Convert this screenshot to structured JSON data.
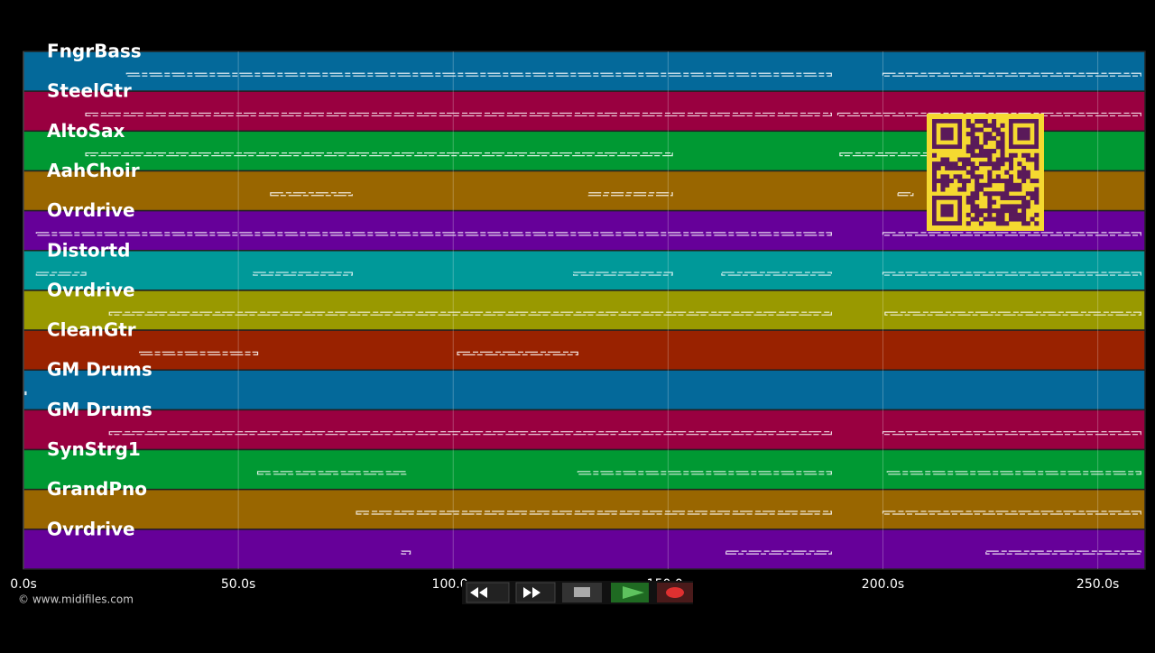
{
  "chart_data": {
    "type": "timeline",
    "tracks": [
      {
        "name": "FngrBass",
        "color": "#04699a",
        "notes": [
          [
            24,
            188
          ],
          [
            200,
            260
          ]
        ]
      },
      {
        "name": "SteelGtr",
        "color": "#990040",
        "notes": [
          [
            14.5,
            188
          ],
          [
            189.5,
            260
          ]
        ]
      },
      {
        "name": "AltoSax",
        "color": "#009933",
        "notes": [
          [
            14.5,
            151
          ],
          [
            190,
            211
          ]
        ]
      },
      {
        "name": "AahChoir",
        "color": "#996600",
        "notes": [
          [
            57.5,
            76.5
          ],
          [
            131.5,
            151
          ],
          [
            203.5,
            207
          ]
        ]
      },
      {
        "name": "Ovrdrive",
        "color": "#660099",
        "notes": [
          [
            3,
            188
          ],
          [
            200,
            260
          ]
        ]
      },
      {
        "name": "Distortd",
        "color": "#009999",
        "notes": [
          [
            3,
            14.5
          ],
          [
            53.5,
            76.5
          ],
          [
            128,
            151
          ],
          [
            162.5,
            188
          ],
          [
            200,
            260
          ]
        ]
      },
      {
        "name": "Ovrdrive",
        "color": "#999900",
        "notes": [
          [
            20,
            188
          ],
          [
            200.5,
            260
          ]
        ]
      },
      {
        "name": "CleanGtr",
        "color": "#992200",
        "notes": [
          [
            27,
            54.5
          ],
          [
            101,
            129
          ]
        ]
      },
      {
        "name": "GM Drums",
        "color": "#04699a",
        "notes": [
          [
            0.4,
            0.6
          ]
        ]
      },
      {
        "name": "GM Drums",
        "color": "#990040",
        "notes": [
          [
            20,
            188
          ],
          [
            200,
            260
          ]
        ]
      },
      {
        "name": "SynStrg1",
        "color": "#009933",
        "notes": [
          [
            54.5,
            89
          ],
          [
            129,
            188
          ],
          [
            201,
            260
          ]
        ]
      },
      {
        "name": "GrandPno",
        "color": "#996600",
        "notes": [
          [
            77.5,
            188
          ],
          [
            200,
            260
          ]
        ]
      },
      {
        "name": "Ovrdrive",
        "color": "#660099",
        "notes": [
          [
            88,
            90
          ],
          [
            163.5,
            188
          ],
          [
            224,
            260
          ]
        ]
      }
    ],
    "xlim": [
      0,
      261
    ],
    "xticks": [
      {
        "value": 0,
        "label": "0.0s"
      },
      {
        "value": 50,
        "label": "50.0s"
      },
      {
        "value": 100,
        "label": "100.0s"
      },
      {
        "value": 150,
        "label": "150.0s"
      },
      {
        "value": 200,
        "label": "200.0s"
      },
      {
        "value": 250,
        "label": "250.0s"
      }
    ],
    "grid": true,
    "footer": "© www.midifiles.com"
  }
}
